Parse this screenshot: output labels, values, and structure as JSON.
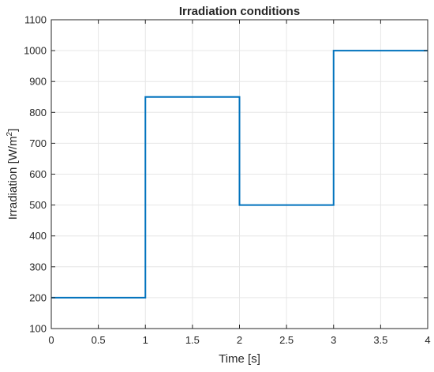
{
  "chart_data": {
    "type": "line",
    "title": "Irradiation conditions",
    "xlabel": "Time [s]",
    "ylabel_main": "Irradiation [W/m",
    "ylabel_sup": "2",
    "ylabel_close": "]",
    "xlim": [
      0,
      4
    ],
    "ylim": [
      100,
      1100
    ],
    "xticks": [
      0,
      0.5,
      1,
      1.5,
      2,
      2.5,
      3,
      3.5,
      4
    ],
    "xtick_labels": [
      "0",
      "0.5",
      "1",
      "1.5",
      "2",
      "2.5",
      "3",
      "3.5",
      "4"
    ],
    "yticks": [
      100,
      200,
      300,
      400,
      500,
      600,
      700,
      800,
      900,
      1000,
      1100
    ],
    "ytick_labels": [
      "100",
      "200",
      "300",
      "400",
      "500",
      "600",
      "700",
      "800",
      "900",
      "1000",
      "1100"
    ],
    "grid": true,
    "series": [
      {
        "color": "#0072BD",
        "x": [
          0,
          1,
          1,
          2,
          2,
          3,
          3,
          4
        ],
        "y": [
          200,
          200,
          850,
          850,
          500,
          500,
          1000,
          1000
        ]
      }
    ]
  }
}
